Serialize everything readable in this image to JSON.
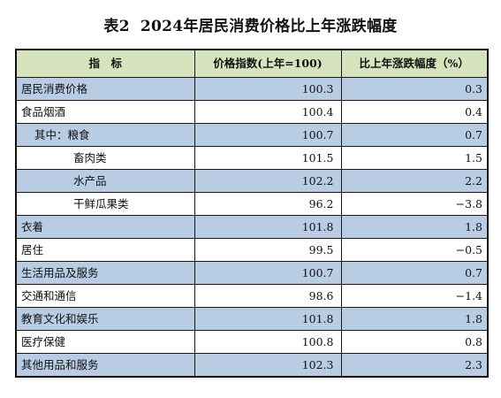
{
  "title": {
    "prefix": "表2",
    "text": "2024年居民消费价格比上年涨跌幅度"
  },
  "table": {
    "headers": [
      "指　标",
      "价格指数(上年=100)",
      "比上年涨跌幅度（%）"
    ],
    "rows": [
      {
        "name": "居民消费价格",
        "level": 0,
        "shaded": true,
        "index": "100.3",
        "change": "0.3"
      },
      {
        "name": "食品烟酒",
        "level": 0,
        "shaded": false,
        "index": "100.4",
        "change": "0.4"
      },
      {
        "name": "其中：粮食",
        "level": 1,
        "shaded": true,
        "index": "100.7",
        "change": "0.7"
      },
      {
        "name": "畜肉类",
        "level": 2,
        "shaded": false,
        "index": "101.5",
        "change": "1.5"
      },
      {
        "name": "水产品",
        "level": 2,
        "shaded": true,
        "index": "102.2",
        "change": "2.2"
      },
      {
        "name": "干鲜瓜果类",
        "level": 2,
        "shaded": false,
        "index": "96.2",
        "change": "−3.8"
      },
      {
        "name": "衣着",
        "level": 0,
        "shaded": true,
        "index": "101.8",
        "change": "1.8"
      },
      {
        "name": "居住",
        "level": 0,
        "shaded": false,
        "index": "99.5",
        "change": "−0.5"
      },
      {
        "name": "生活用品及服务",
        "level": 0,
        "shaded": true,
        "index": "100.7",
        "change": "0.7"
      },
      {
        "name": "交通和通信",
        "level": 0,
        "shaded": false,
        "index": "98.6",
        "change": "−1.4"
      },
      {
        "name": "教育文化和娱乐",
        "level": 0,
        "shaded": true,
        "index": "101.8",
        "change": "1.8"
      },
      {
        "name": "医疗保健",
        "level": 0,
        "shaded": false,
        "index": "100.8",
        "change": "0.8"
      },
      {
        "name": "其他用品和服务",
        "level": 0,
        "shaded": true,
        "index": "102.3",
        "change": "2.3"
      }
    ]
  },
  "colors": {
    "header_bg": "#d6e3bc",
    "shaded_row_bg": "#b8cce4",
    "plain_row_bg": "#ffffff",
    "border": "#1a1a1a"
  }
}
